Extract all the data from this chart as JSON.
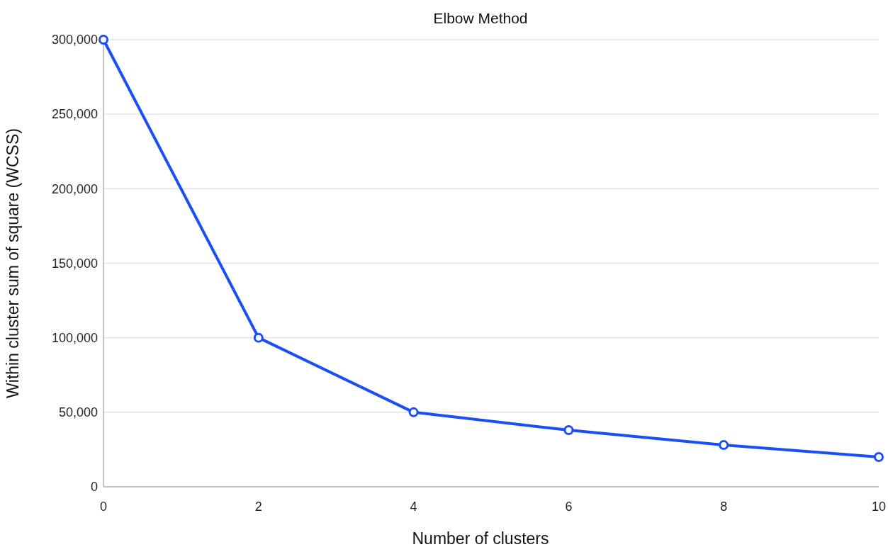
{
  "chart_data": {
    "type": "line",
    "title": "Elbow Method",
    "xlabel": "Number of clusters",
    "ylabel": "Within cluster sum of square (WCSS)",
    "x": [
      0,
      2,
      4,
      6,
      8,
      10
    ],
    "series": [
      {
        "color": "#1a4ff5",
        "values": [
          300000,
          100000,
          50000,
          38000,
          28000,
          20000
        ]
      }
    ],
    "xlim": [
      0,
      10
    ],
    "xticks": [
      0,
      2,
      4,
      6,
      8,
      10
    ],
    "ylim": [
      0,
      300000
    ],
    "yticks": [
      {
        "value": 0,
        "label": "0"
      },
      {
        "value": 50000,
        "label": "50,000"
      },
      {
        "value": 100000,
        "label": "100,000"
      },
      {
        "value": 150000,
        "label": "150,000"
      },
      {
        "value": 200000,
        "label": "200,000"
      },
      {
        "value": 250000,
        "label": "250,000"
      },
      {
        "value": 300000,
        "label": "300,000"
      }
    ],
    "grid": "y",
    "marker": "circle",
    "line_style": "solid"
  }
}
